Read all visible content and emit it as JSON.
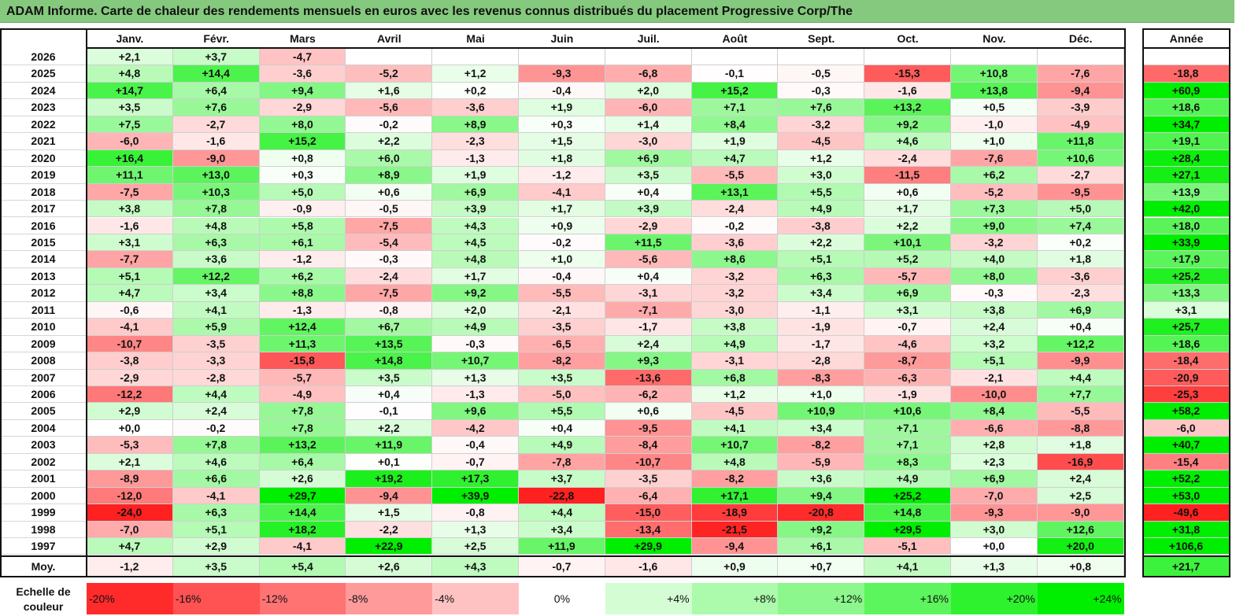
{
  "title": "ADAM Informe. Carte de chaleur des rendements mensuels en euros avec les revenus connus distribués du placement Progressive Corp/The",
  "chart_data": {
    "type": "heatmap",
    "title": "ADAM Informe. Carte de chaleur des rendements mensuels en euros avec les revenus connus distribués du placement Progressive Corp/The",
    "columns": [
      "Janv.",
      "Févr.",
      "Mars",
      "Avril",
      "Mai",
      "Juin",
      "Juil.",
      "Août",
      "Sept.",
      "Oct.",
      "Nov.",
      "Déc."
    ],
    "year_column_label": "Année",
    "rows": [
      {
        "year": "2026",
        "months": [
          "+2,1",
          "+3,7",
          "-4,7",
          "",
          "",
          "",
          "",
          "",
          "",
          "",
          "",
          ""
        ],
        "annual": ""
      },
      {
        "year": "2025",
        "months": [
          "+4,8",
          "+14,4",
          "-3,6",
          "-5,2",
          "+1,2",
          "-9,3",
          "-6,8",
          "-0,1",
          "-0,5",
          "-15,3",
          "+10,8",
          "-7,6"
        ],
        "annual": "-18,8"
      },
      {
        "year": "2024",
        "months": [
          "+14,7",
          "+6,4",
          "+9,4",
          "+1,6",
          "+0,2",
          "-0,4",
          "+2,0",
          "+15,2",
          "-0,3",
          "-1,6",
          "+13,8",
          "-9,4"
        ],
        "annual": "+60,9"
      },
      {
        "year": "2023",
        "months": [
          "+3,5",
          "+7,6",
          "-2,9",
          "-5,6",
          "-3,6",
          "+1,9",
          "-6,0",
          "+7,1",
          "+7,6",
          "+13,2",
          "+0,5",
          "-3,9"
        ],
        "annual": "+18,6"
      },
      {
        "year": "2022",
        "months": [
          "+7,5",
          "-2,7",
          "+8,0",
          "-0,2",
          "+8,9",
          "+0,3",
          "+1,4",
          "+8,4",
          "-3,2",
          "+9,2",
          "-1,0",
          "-4,9"
        ],
        "annual": "+34,7"
      },
      {
        "year": "2021",
        "months": [
          "-6,0",
          "-1,6",
          "+15,2",
          "+2,2",
          "-2,3",
          "+1,5",
          "-3,0",
          "+1,9",
          "-4,5",
          "+4,6",
          "+1,0",
          "+11,8"
        ],
        "annual": "+19,1"
      },
      {
        "year": "2020",
        "months": [
          "+16,4",
          "-9,0",
          "+0,8",
          "+6,0",
          "-1,3",
          "+1,8",
          "+6,9",
          "+4,7",
          "+1,2",
          "-2,4",
          "-7,6",
          "+10,6"
        ],
        "annual": "+28,4"
      },
      {
        "year": "2019",
        "months": [
          "+11,1",
          "+13,0",
          "+0,3",
          "+8,9",
          "+1,9",
          "-1,2",
          "+3,5",
          "-5,5",
          "+3,0",
          "-11,5",
          "+6,2",
          "-2,7"
        ],
        "annual": "+27,1"
      },
      {
        "year": "2018",
        "months": [
          "-7,5",
          "+10,3",
          "+5,0",
          "+0,6",
          "+6,9",
          "-4,1",
          "+0,4",
          "+13,1",
          "+5,5",
          "+0,6",
          "-5,2",
          "-9,5"
        ],
        "annual": "+13,9"
      },
      {
        "year": "2017",
        "months": [
          "+3,8",
          "+7,8",
          "-0,9",
          "-0,5",
          "+3,9",
          "+1,7",
          "+3,9",
          "-2,4",
          "+4,9",
          "+1,7",
          "+7,3",
          "+5,0"
        ],
        "annual": "+42,0"
      },
      {
        "year": "2016",
        "months": [
          "-1,6",
          "+4,8",
          "+5,8",
          "-7,5",
          "+4,3",
          "+0,9",
          "-2,9",
          "-0,2",
          "-3,8",
          "+2,2",
          "+9,0",
          "+7,4"
        ],
        "annual": "+18,0"
      },
      {
        "year": "2015",
        "months": [
          "+3,1",
          "+6,3",
          "+6,1",
          "-5,4",
          "+4,5",
          "-0,2",
          "+11,5",
          "-3,6",
          "+2,2",
          "+10,1",
          "-3,2",
          "+0,2"
        ],
        "annual": "+33,9"
      },
      {
        "year": "2014",
        "months": [
          "-7,7",
          "+3,6",
          "-1,2",
          "-0,3",
          "+4,8",
          "+1,0",
          "-5,6",
          "+8,6",
          "+5,1",
          "+5,2",
          "+4,0",
          "+1,8"
        ],
        "annual": "+17,9"
      },
      {
        "year": "2013",
        "months": [
          "+5,1",
          "+12,2",
          "+6,2",
          "-2,4",
          "+1,7",
          "-0,4",
          "+0,4",
          "-3,2",
          "+6,3",
          "-5,7",
          "+8,0",
          "-3,6"
        ],
        "annual": "+25,2"
      },
      {
        "year": "2012",
        "months": [
          "+4,7",
          "+3,4",
          "+8,8",
          "-7,5",
          "+9,2",
          "-5,5",
          "-3,1",
          "-3,2",
          "+3,4",
          "+6,9",
          "-0,3",
          "-2,3"
        ],
        "annual": "+13,3"
      },
      {
        "year": "2011",
        "months": [
          "-0,6",
          "+4,1",
          "-1,3",
          "-0,8",
          "+2,0",
          "-2,1",
          "-7,1",
          "-3,0",
          "-1,1",
          "+3,1",
          "+3,8",
          "+6,9"
        ],
        "annual": "+3,1"
      },
      {
        "year": "2010",
        "months": [
          "-4,1",
          "+5,9",
          "+12,4",
          "+6,7",
          "+4,9",
          "-3,5",
          "-1,7",
          "+3,8",
          "-1,9",
          "-0,7",
          "+2,4",
          "+0,4"
        ],
        "annual": "+25,7"
      },
      {
        "year": "2009",
        "months": [
          "-10,7",
          "-3,5",
          "+11,3",
          "+13,5",
          "-0,3",
          "-6,5",
          "+2,4",
          "+4,9",
          "-1,7",
          "-4,6",
          "+3,2",
          "+12,2"
        ],
        "annual": "+18,6"
      },
      {
        "year": "2008",
        "months": [
          "-3,8",
          "-3,3",
          "-15,8",
          "+14,8",
          "+10,7",
          "-8,2",
          "+9,3",
          "-3,1",
          "-2,8",
          "-8,7",
          "+5,1",
          "-9,9"
        ],
        "annual": "-18,4"
      },
      {
        "year": "2007",
        "months": [
          "-2,9",
          "-2,8",
          "-5,7",
          "+3,5",
          "+1,3",
          "+3,5",
          "-13,6",
          "+6,8",
          "-8,3",
          "-6,3",
          "-2,1",
          "+4,4"
        ],
        "annual": "-20,9"
      },
      {
        "year": "2006",
        "months": [
          "-12,2",
          "+4,4",
          "-4,9",
          "+0,4",
          "-1,3",
          "-5,0",
          "-6,2",
          "+1,2",
          "+1,0",
          "-1,9",
          "-10,0",
          "+7,7"
        ],
        "annual": "-25,3"
      },
      {
        "year": "2005",
        "months": [
          "+2,9",
          "+2,4",
          "+7,8",
          "-0,1",
          "+9,6",
          "+5,5",
          "+0,6",
          "-4,5",
          "+10,9",
          "+10,6",
          "+8,4",
          "-5,5"
        ],
        "annual": "+58,2"
      },
      {
        "year": "2004",
        "months": [
          "+0,0",
          "-0,2",
          "+7,8",
          "+2,2",
          "-4,2",
          "+0,4",
          "-9,5",
          "+4,1",
          "+3,4",
          "+7,1",
          "-6,6",
          "-8,8"
        ],
        "annual": "-6,0"
      },
      {
        "year": "2003",
        "months": [
          "-5,3",
          "+7,8",
          "+13,2",
          "+11,9",
          "-0,4",
          "+4,9",
          "-8,4",
          "+10,7",
          "-8,2",
          "+7,1",
          "+2,8",
          "+1,8"
        ],
        "annual": "+40,7"
      },
      {
        "year": "2002",
        "months": [
          "+2,1",
          "+4,6",
          "+6,4",
          "+0,1",
          "-0,7",
          "-7,8",
          "-10,7",
          "+4,8",
          "-5,9",
          "+8,3",
          "+2,3",
          "-16,9"
        ],
        "annual": "-15,4"
      },
      {
        "year": "2001",
        "months": [
          "-8,9",
          "+6,6",
          "+2,6",
          "+19,2",
          "+17,3",
          "+3,7",
          "-3,5",
          "-8,2",
          "+3,6",
          "+4,9",
          "+6,9",
          "+2,4"
        ],
        "annual": "+52,2"
      },
      {
        "year": "2000",
        "months": [
          "-12,0",
          "-4,1",
          "+29,7",
          "-9,4",
          "+39,9",
          "-22,8",
          "-6,4",
          "+17,1",
          "+9,4",
          "+25,2",
          "-7,0",
          "+2,5"
        ],
        "annual": "+53,0"
      },
      {
        "year": "1999",
        "months": [
          "-24,0",
          "+6,3",
          "+14,4",
          "+1,5",
          "-0,8",
          "+4,4",
          "-15,0",
          "-18,9",
          "-20,8",
          "+14,8",
          "-9,3",
          "-9,0"
        ],
        "annual": "-49,6"
      },
      {
        "year": "1998",
        "months": [
          "-7,0",
          "+5,1",
          "+18,2",
          "-2,2",
          "+1,3",
          "+3,4",
          "-13,4",
          "-21,5",
          "+9,2",
          "+29,5",
          "+3,0",
          "+12,6"
        ],
        "annual": "+31,8"
      },
      {
        "year": "1997",
        "months": [
          "+4,7",
          "+2,9",
          "-4,1",
          "+22,9",
          "+2,5",
          "+11,9",
          "+29,9",
          "-9,4",
          "+6,1",
          "-5,1",
          "+0,0",
          "+20,0"
        ],
        "annual": "+106,6"
      }
    ],
    "average": {
      "label": "Moy.",
      "months": [
        "-1,2",
        "+3,5",
        "+5,4",
        "+2,6",
        "+4,3",
        "-0,7",
        "-1,6",
        "+0,9",
        "+0,7",
        "+4,1",
        "+1,3",
        "+0,8"
      ],
      "annual": "+21,7"
    },
    "color_scale": {
      "label": "Echelle de couleur",
      "stops": [
        "-20%",
        "-16%",
        "-12%",
        "-8%",
        "-4%",
        "0%",
        "+4%",
        "+8%",
        "+12%",
        "+16%",
        "+20%",
        "+24%"
      ],
      "stop_values": [
        -20,
        -16,
        -12,
        -8,
        -4,
        0,
        4,
        8,
        12,
        16,
        20,
        24
      ],
      "stop_colors": [
        "#ff2b2b",
        "#ff5252",
        "#ff7373",
        "#ff9a9a",
        "#ffc2c2",
        "#ffffff",
        "#d4fdd4",
        "#acfaac",
        "#8cf78c",
        "#5df55d",
        "#2ef22e",
        "#00ee00"
      ]
    },
    "colors": {
      "negative": "#ff2020",
      "neutral": "#ffffff",
      "positive": "#00ee00",
      "title_bar": "#85c97e"
    }
  }
}
